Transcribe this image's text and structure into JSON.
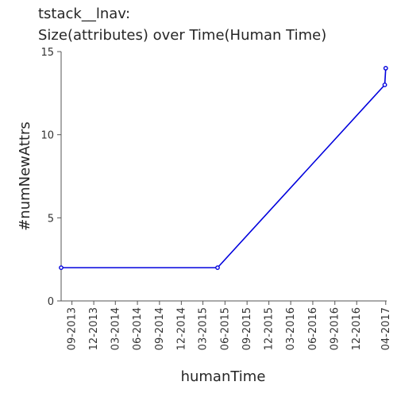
{
  "chart_data": {
    "type": "line",
    "title_lines": [
      "tstack__lnav:",
      "Size(attributes) over Time(Human Time)"
    ],
    "xlabel": "humanTime",
    "ylabel": "#numNewAttrs",
    "x_tick_labels": [
      "09-2013",
      "12-2013",
      "03-2014",
      "06-2014",
      "09-2014",
      "12-2014",
      "03-2015",
      "06-2015",
      "09-2015",
      "12-2015",
      "03-2016",
      "06-2016",
      "09-2016",
      "12-2016",
      "04-2017"
    ],
    "x_range": [
      "2013-07-18",
      "2017-04-05"
    ],
    "y_ticks": [
      0,
      5,
      10,
      15
    ],
    "ylim": [
      0,
      15
    ],
    "grid": false,
    "legend": "none",
    "line_color": "#0000dd",
    "series": [
      {
        "x": [
          "2013-07-18",
          "2015-05-01",
          "2017-03-28",
          "2017-04-01"
        ],
        "y": [
          2,
          2,
          13,
          14
        ]
      }
    ]
  }
}
